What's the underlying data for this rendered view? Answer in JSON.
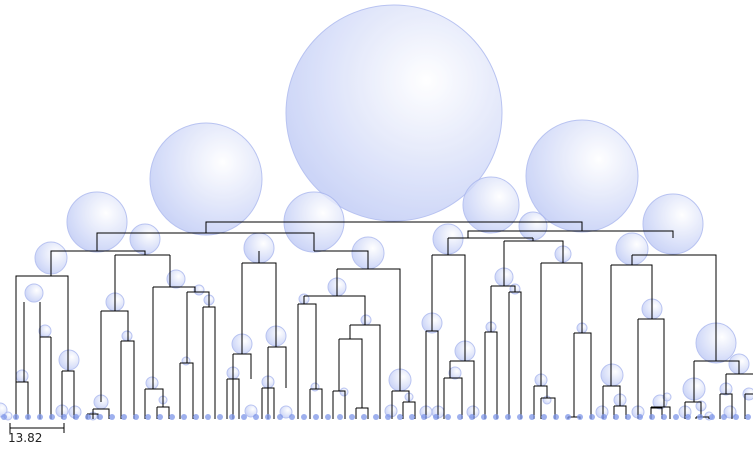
{
  "scale_bar": {
    "label": "13.82"
  },
  "colors": {
    "bubble_fill_center": "#ffffff",
    "bubble_fill_edge": "#bcc8f5",
    "bubble_stroke": "#a9b6ee",
    "branch_line": "#000000",
    "leaf_dot": "#7e95e8"
  }
}
